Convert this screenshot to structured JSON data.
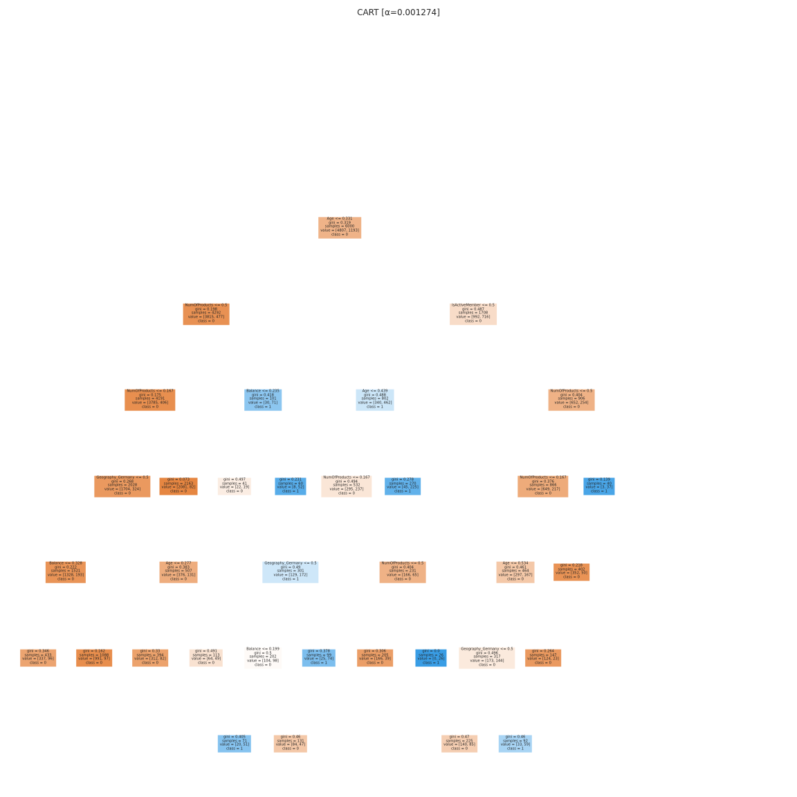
{
  "title": "CART [α=0.001274]",
  "class_colors": {
    "0": "#e58139",
    "1": "#399de5"
  },
  "nodes": [
    {
      "id": "n0",
      "lines": [
        "Age <= 0.331",
        "gini = 0.319",
        "samples = 6000",
        "value = [4807, 1193]",
        "class = 0"
      ],
      "class": "0",
      "purity": 0.6
    },
    {
      "id": "n1",
      "lines": [
        "NumOfProducts <= 0.5",
        "gini = 0.198",
        "samples = 4292",
        "value = [3815, 477]",
        "class = 0"
      ],
      "class": "0",
      "purity": 0.87
    },
    {
      "id": "n2",
      "lines": [
        "IsActiveMember <= 0.5",
        "gini = 0.487",
        "samples = 1708",
        "value = [992, 716]",
        "class = 0"
      ],
      "class": "0",
      "purity": 0.28
    },
    {
      "id": "n3",
      "lines": [
        "NumOfProducts <= 0.167",
        "gini = 0.175",
        "samples = 4191",
        "value = [3785, 406]",
        "class = 0"
      ],
      "class": "0",
      "purity": 0.89
    },
    {
      "id": "n4",
      "lines": [
        "Balance <= 0.235",
        "gini = 0.418",
        "samples = 101",
        "value = [30, 71]",
        "class = 1"
      ],
      "class": "1",
      "purity": 0.58
    },
    {
      "id": "n5",
      "lines": [
        "Age <= 0.439",
        "gini = 0.488",
        "samples = 802",
        "value = [340, 462]",
        "class = 1"
      ],
      "class": "1",
      "purity": 0.26
    },
    {
      "id": "n6",
      "lines": [
        "NumOfProducts <= 0.5",
        "gini = 0.404",
        "samples = 906",
        "value = [652, 254]",
        "class = 0"
      ],
      "class": "0",
      "purity": 0.61
    },
    {
      "id": "n7",
      "lines": [
        "Geography_Germany <= 0.5",
        "gini = 0.268",
        "samples = 2028",
        "value = [1704, 324]",
        "class = 0"
      ],
      "class": "0",
      "purity": 0.81
    },
    {
      "id": "n8",
      "lines": [
        "gini = 0.073",
        "samples = 2163",
        "value = [2081, 82]",
        "class = 0"
      ],
      "class": "0",
      "purity": 0.96
    },
    {
      "id": "n9",
      "lines": [
        "gini = 0.497",
        "samples = 41",
        "value = [22, 19]",
        "class = 0"
      ],
      "class": "0",
      "purity": 0.14
    },
    {
      "id": "n10",
      "lines": [
        "gini = 0.231",
        "samples = 60",
        "value = [8, 52]",
        "class = 1"
      ],
      "class": "1",
      "purity": 0.85
    },
    {
      "id": "n11",
      "lines": [
        "NumOfProducts <= 0.167",
        "gini = 0.494",
        "samples = 532",
        "value = [295, 237]",
        "class = 0"
      ],
      "class": "0",
      "purity": 0.2
    },
    {
      "id": "n12",
      "lines": [
        "gini = 0.278",
        "samples = 270",
        "value = [45, 225]",
        "class = 1"
      ],
      "class": "1",
      "purity": 0.8
    },
    {
      "id": "n13",
      "lines": [
        "NumOfProducts <= 0.167",
        "gini = 0.376",
        "samples = 866",
        "value = [649, 217]",
        "class = 0"
      ],
      "class": "0",
      "purity": 0.67
    },
    {
      "id": "n14",
      "lines": [
        "gini = 0.139",
        "samples = 40",
        "value = [3, 37]",
        "class = 1"
      ],
      "class": "1",
      "purity": 0.92
    },
    {
      "id": "n15",
      "lines": [
        "Balance <= 0.328",
        "gini = 0.222",
        "samples = 1521",
        "value = [1328, 193]",
        "class = 0"
      ],
      "class": "0",
      "purity": 0.85
    },
    {
      "id": "n16",
      "lines": [
        "Age <= 0.277",
        "gini = 0.383",
        "samples = 507",
        "value = [376, 131]",
        "class = 0"
      ],
      "class": "0",
      "purity": 0.65
    },
    {
      "id": "n17",
      "lines": [
        "Geography_Germany <= 0.5",
        "gini = 0.49",
        "samples = 301",
        "value = [129, 172]",
        "class = 1"
      ],
      "class": "1",
      "purity": 0.25
    },
    {
      "id": "n18",
      "lines": [
        "NumOfProducts <= 0.5",
        "gini = 0.404",
        "samples = 231",
        "value = [166, 65]",
        "class = 0"
      ],
      "class": "0",
      "purity": 0.61
    },
    {
      "id": "n19",
      "lines": [
        "Age <= 0.534",
        "gini = 0.461",
        "samples = 464",
        "value = [297, 167]",
        "class = 0"
      ],
      "class": "0",
      "purity": 0.44
    },
    {
      "id": "n20",
      "lines": [
        "gini = 0.218",
        "samples = 402",
        "value = [352, 50]",
        "class = 0"
      ],
      "class": "0",
      "purity": 0.86
    },
    {
      "id": "n21",
      "lines": [
        "gini = 0.346",
        "samples = 433",
        "value = [337, 96]",
        "class = 0"
      ],
      "class": "0",
      "purity": 0.72
    },
    {
      "id": "n22",
      "lines": [
        "gini = 0.162",
        "samples = 1088",
        "value = [991, 97]",
        "class = 0"
      ],
      "class": "0",
      "purity": 0.9
    },
    {
      "id": "n23",
      "lines": [
        "gini = 0.33",
        "samples = 394",
        "value = [312, 82]",
        "class = 0"
      ],
      "class": "0",
      "purity": 0.74
    },
    {
      "id": "n24",
      "lines": [
        "gini = 0.491",
        "samples = 113",
        "value = [64, 49]",
        "class = 0"
      ],
      "class": "0",
      "purity": 0.23
    },
    {
      "id": "n25",
      "lines": [
        "Balance <= 0.199",
        "gini = 0.5",
        "samples = 202",
        "value = [104, 98]",
        "class = 0"
      ],
      "class": "0",
      "purity": 0.04
    },
    {
      "id": "n26",
      "lines": [
        "gini = 0.378",
        "samples = 99",
        "value = [25, 74]",
        "class = 1"
      ],
      "class": "1",
      "purity": 0.66
    },
    {
      "id": "n27",
      "lines": [
        "gini = 0.306",
        "samples = 205",
        "value = [166, 39]",
        "class = 0"
      ],
      "class": "0",
      "purity": 0.77
    },
    {
      "id": "n28",
      "lines": [
        "gini = 0.0",
        "samples = 26",
        "value = [0, 26]",
        "class = 1"
      ],
      "class": "1",
      "purity": 1.0
    },
    {
      "id": "n29",
      "lines": [
        "Geography_Germany <= 0.5",
        "gini = 0.496",
        "samples = 317",
        "value = [173, 144]",
        "class = 0"
      ],
      "class": "0",
      "purity": 0.17
    },
    {
      "id": "n30",
      "lines": [
        "gini = 0.264",
        "samples = 147",
        "value = [124, 23]",
        "class = 0"
      ],
      "class": "0",
      "purity": 0.81
    },
    {
      "id": "n31",
      "lines": [
        "gini = 0.405",
        "samples = 71",
        "value = [20, 51]",
        "class = 1"
      ],
      "class": "1",
      "purity": 0.61
    },
    {
      "id": "n32",
      "lines": [
        "gini = 0.46",
        "samples = 131",
        "value = [84, 47]",
        "class = 0"
      ],
      "class": "0",
      "purity": 0.44
    },
    {
      "id": "n33",
      "lines": [
        "gini = 0.47",
        "samples = 225",
        "value = [140, 85]",
        "class = 0"
      ],
      "class": "0",
      "purity": 0.39
    },
    {
      "id": "n34",
      "lines": [
        "gini = 0.46",
        "samples = 92",
        "value = [33, 59]",
        "class = 1"
      ],
      "class": "1",
      "purity": 0.44
    }
  ]
}
